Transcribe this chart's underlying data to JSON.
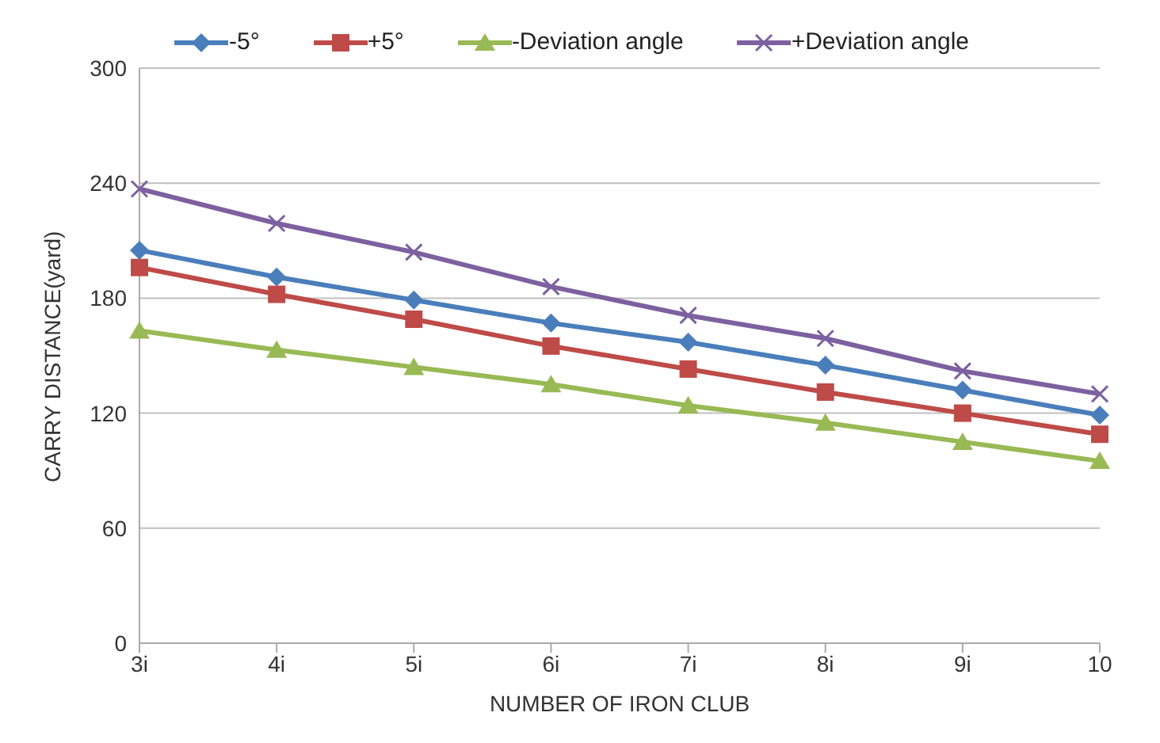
{
  "chart_data": {
    "type": "line",
    "xlabel": "NUMBER OF IRON CLUB",
    "ylabel": "CARRY DISTANCE(yard)",
    "categories": [
      "3i",
      "4i",
      "5i",
      "6i",
      "7i",
      "8i",
      "9i",
      "10"
    ],
    "series": [
      {
        "name": "-5°",
        "color": "#4a7ebb",
        "marker": "diamond",
        "values": [
          205,
          191,
          179,
          167,
          157,
          145,
          132,
          119
        ]
      },
      {
        "name": "+5°",
        "color": "#be4b48",
        "marker": "square",
        "values": [
          196,
          182,
          169,
          155,
          143,
          131,
          120,
          109
        ]
      },
      {
        "name": "-Deviation angle",
        "color": "#98b954",
        "marker": "triangle",
        "values": [
          163,
          153,
          144,
          135,
          124,
          115,
          105,
          95
        ]
      },
      {
        "name": "+Deviation angle",
        "color": "#7d60a0",
        "marker": "cross",
        "values": [
          237,
          219,
          204,
          186,
          171,
          159,
          142,
          130
        ]
      }
    ],
    "ylim": [
      0,
      300
    ],
    "yticks": [
      0,
      60,
      120,
      180,
      240,
      300
    ],
    "grid": "y",
    "legend": "top"
  }
}
